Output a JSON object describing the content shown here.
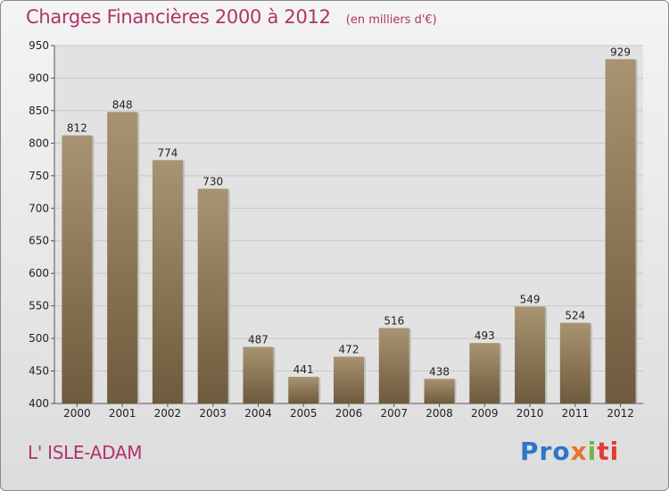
{
  "header": {
    "title": "Charges Financières 2000 à 2012",
    "unit": "(en milliers d'€)"
  },
  "footer": {
    "city": "L' ISLE-ADAM",
    "logo_parts": [
      "Pro",
      "x",
      "i",
      "ti"
    ]
  },
  "colors": {
    "title": "#b0336a",
    "bar_top": "#a89472",
    "bar_bottom": "#6e5a3c",
    "grid": "#c8c8c8"
  },
  "chart_data": {
    "type": "bar",
    "categories": [
      "2000",
      "2001",
      "2002",
      "2003",
      "2004",
      "2005",
      "2006",
      "2007",
      "2008",
      "2009",
      "2010",
      "2011",
      "2012"
    ],
    "values": [
      812,
      848,
      774,
      730,
      487,
      441,
      472,
      516,
      438,
      493,
      549,
      524,
      929
    ],
    "ylim": [
      400,
      950
    ],
    "yticks": [
      400,
      450,
      500,
      550,
      600,
      650,
      700,
      750,
      800,
      850,
      900,
      950
    ],
    "grid": true
  }
}
